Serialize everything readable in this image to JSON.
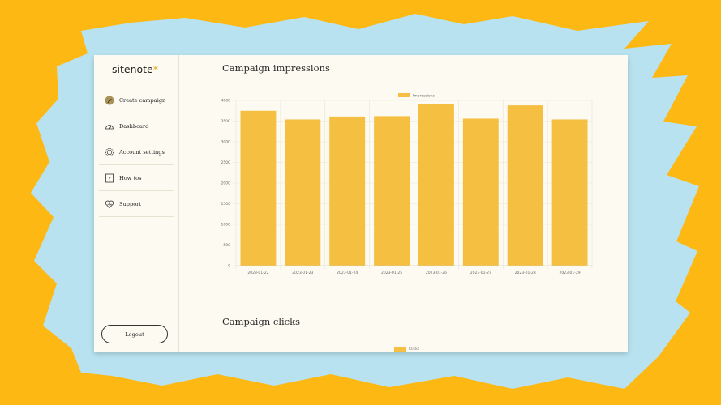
{
  "brand": {
    "name": "sitenote",
    "star": "*"
  },
  "sidebar": {
    "items": [
      {
        "label": "Create campaign",
        "icon": "pencil-icon"
      },
      {
        "label": "Dashboard",
        "icon": "gauge-icon"
      },
      {
        "label": "Account settings",
        "icon": "gear-icon"
      },
      {
        "label": "How tos",
        "icon": "question-icon"
      },
      {
        "label": "Support",
        "icon": "heart-icon"
      }
    ],
    "logout_label": "Logout"
  },
  "main": {
    "impressions_title": "Campaign impressions",
    "clicks_title": "Campaign clicks",
    "clicks_legend": "Clicks"
  },
  "colors": {
    "page_background": "#FDB813",
    "backdrop_shape": "#B8E2EF",
    "bar": "#F5BF42",
    "panel": "#FDFBF1"
  },
  "chart_data": [
    {
      "type": "bar",
      "title": "",
      "legend": "top",
      "grid": true,
      "ylim": [
        0,
        4000
      ],
      "yticks": [
        0,
        500,
        1000,
        1500,
        2000,
        2500,
        3000,
        3500,
        4000
      ],
      "categories": [
        "2023-01-22",
        "2023-01-23",
        "2023-01-24",
        "2023-01-25",
        "2023-01-26",
        "2023-01-27",
        "2023-01-28",
        "2023-01-29"
      ],
      "series": [
        {
          "name": "Impressions",
          "values": [
            3750,
            3540,
            3610,
            3620,
            3910,
            3560,
            3880,
            3540
          ]
        }
      ]
    }
  ]
}
